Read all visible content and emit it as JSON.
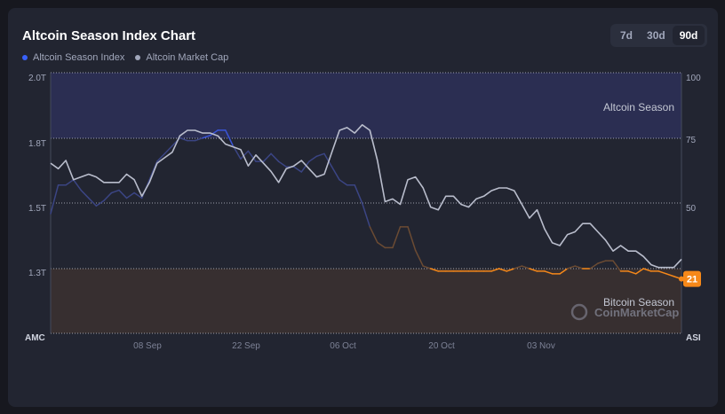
{
  "header": {
    "title": "Altcoin Season Index Chart",
    "legend": [
      {
        "label": "Altcoin Season Index",
        "color": "#3861fb"
      },
      {
        "label": "Altcoin Market Cap",
        "color": "#a1a7bb"
      }
    ],
    "ranges": [
      "7d",
      "30d",
      "90d"
    ],
    "active_range": "90d"
  },
  "chart_data": {
    "type": "line",
    "x_ticks": [
      "08 Sep",
      "22 Sep",
      "06 Oct",
      "20 Oct",
      "03 Nov"
    ],
    "x_edge_labels": {
      "left": "AMC",
      "right": "ASI"
    },
    "y_left_ticks": [
      "2.0T",
      "1.8T",
      "1.5T",
      "1.3T"
    ],
    "y_right_ticks": [
      "100",
      "75",
      "50"
    ],
    "zones": [
      {
        "label": "Altcoin Season",
        "from": 75,
        "to": 100,
        "color": "#2c3056"
      },
      {
        "label": "Bitcoin Season",
        "from": 0,
        "to": 25,
        "color": "#3a3131"
      }
    ],
    "watermark": "CoinMarketCap",
    "current_value": "21",
    "series": [
      {
        "name": "Altcoin Season Index",
        "axis": "right",
        "values": [
          46,
          57,
          57,
          59,
          55,
          52,
          49,
          51,
          54,
          55,
          52,
          54,
          52,
          59,
          66,
          69,
          72,
          75,
          74,
          74,
          75,
          76,
          78,
          78,
          72,
          67,
          70,
          66,
          66,
          69,
          66,
          64,
          64,
          62,
          66,
          68,
          69,
          64,
          59,
          57,
          57,
          50,
          41,
          35,
          33,
          33,
          41,
          41,
          32,
          26,
          25,
          24,
          24,
          24,
          24,
          24,
          24,
          24,
          24,
          25,
          24,
          25,
          26,
          25,
          24,
          24,
          23,
          23,
          25,
          26,
          25,
          25,
          27,
          28,
          28,
          24,
          24,
          23,
          25,
          24,
          24,
          23,
          22,
          21
        ]
      },
      {
        "name": "Altcoin Market Cap",
        "axis": "left",
        "values": [
          1.67,
          1.65,
          1.68,
          1.61,
          1.62,
          1.63,
          1.62,
          1.6,
          1.6,
          1.6,
          1.63,
          1.61,
          1.55,
          1.6,
          1.67,
          1.69,
          1.71,
          1.77,
          1.79,
          1.79,
          1.78,
          1.78,
          1.77,
          1.74,
          1.73,
          1.72,
          1.66,
          1.7,
          1.67,
          1.64,
          1.6,
          1.65,
          1.66,
          1.68,
          1.65,
          1.62,
          1.63,
          1.71,
          1.79,
          1.8,
          1.78,
          1.81,
          1.79,
          1.68,
          1.53,
          1.54,
          1.52,
          1.61,
          1.62,
          1.58,
          1.51,
          1.5,
          1.55,
          1.55,
          1.52,
          1.51,
          1.54,
          1.55,
          1.57,
          1.58,
          1.58,
          1.57,
          1.52,
          1.47,
          1.5,
          1.43,
          1.38,
          1.37,
          1.41,
          1.42,
          1.45,
          1.45,
          1.42,
          1.39,
          1.35,
          1.37,
          1.35,
          1.35,
          1.33,
          1.3,
          1.29,
          1.29,
          1.29,
          1.32
        ]
      }
    ]
  }
}
